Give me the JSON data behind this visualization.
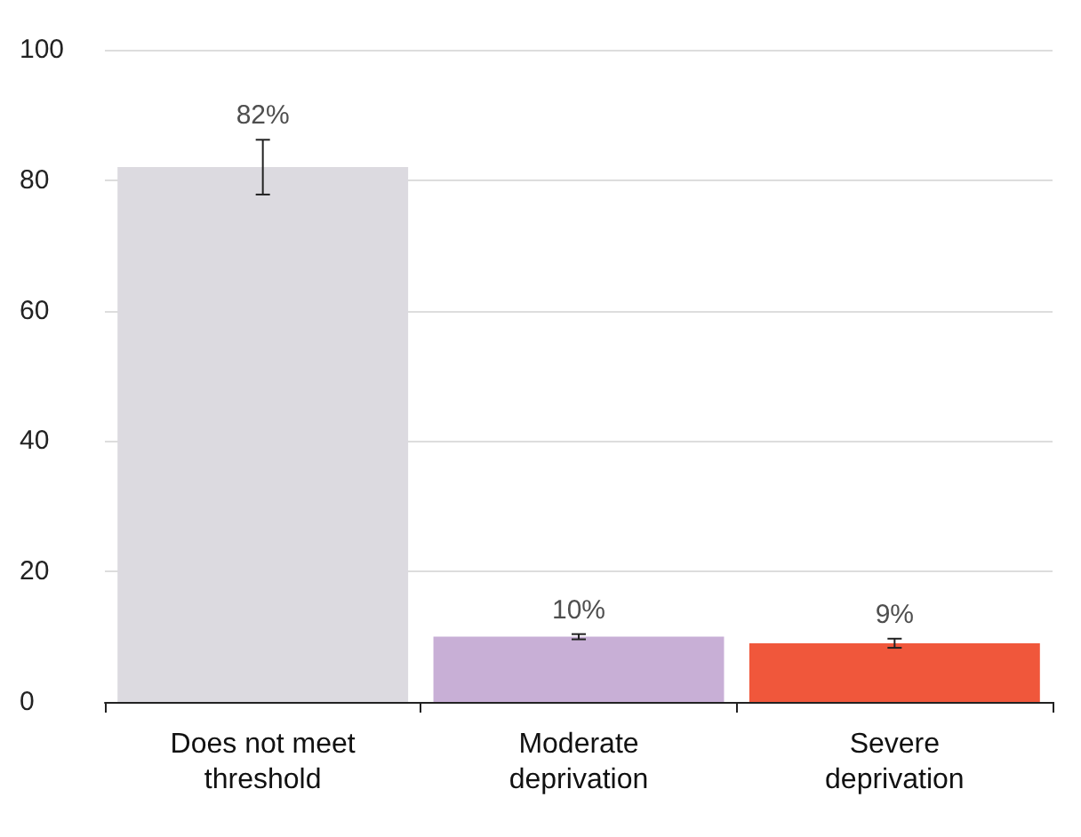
{
  "chart_data": {
    "type": "bar",
    "categories": [
      "Does not meet threshold",
      "Moderate deprivation",
      "Severe deprivation"
    ],
    "values": [
      82,
      10,
      9
    ],
    "colors": [
      "#dcdae0",
      "#c8afd6",
      "#f0573b"
    ],
    "errors": [
      [
        77.8,
        86.2
      ],
      [
        9.6,
        10.4
      ],
      [
        8.3,
        9.7
      ]
    ],
    "value_labels": [
      "82%",
      "10%",
      "9%"
    ],
    "ylim": [
      0,
      100
    ],
    "yticks": [
      0,
      20,
      40,
      60,
      80,
      100
    ],
    "grid": "y"
  }
}
